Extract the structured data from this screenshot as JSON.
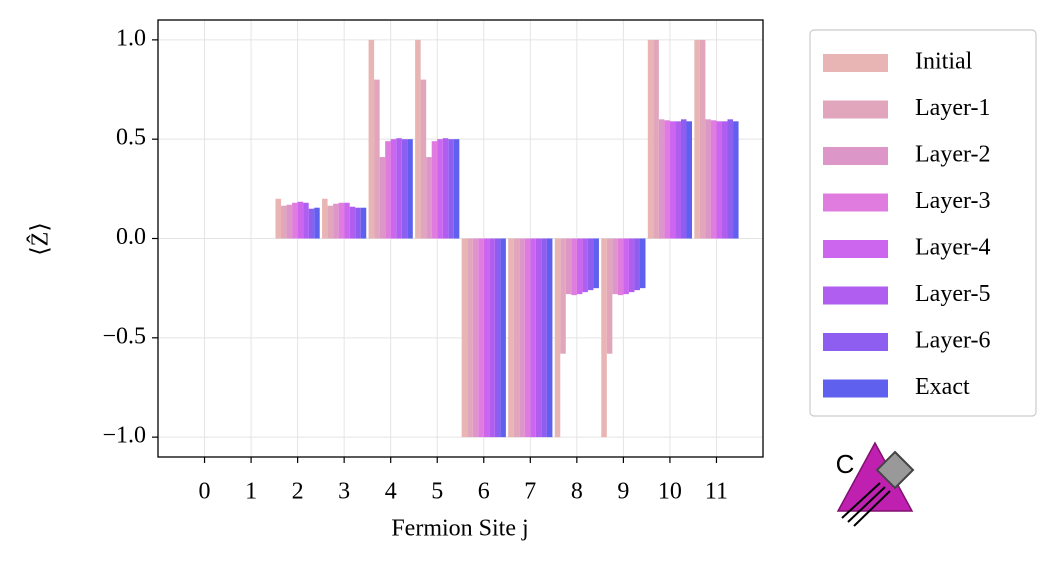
{
  "chart_data": {
    "type": "bar",
    "xlabel": "Fermion Site j",
    "ylabel": "⟨Ẑ⟩",
    "x": [
      0,
      1,
      2,
      3,
      4,
      5,
      6,
      7,
      8,
      9,
      10,
      11
    ],
    "xlim": [
      -1,
      12
    ],
    "xticks": [
      0,
      1,
      2,
      3,
      4,
      5,
      6,
      7,
      8,
      9,
      10,
      11
    ],
    "ylim": [
      -1.1,
      1.1
    ],
    "yticks": [
      {
        "value": -1.0,
        "label": "−1.0"
      },
      {
        "value": -0.5,
        "label": "−0.5"
      },
      {
        "value": 0.0,
        "label": "0.0"
      },
      0.5,
      {
        "value": 1.0,
        "label": "1.0"
      }
    ],
    "grid": true,
    "legend": "outside right",
    "series": [
      {
        "name": "Initial",
        "color": "#e8b4b4",
        "values": [
          0,
          0,
          0.2,
          0.2,
          1.0,
          1.0,
          -1.0,
          -1.0,
          -1.0,
          -1.0,
          1.0,
          1.0
        ]
      },
      {
        "name": "Layer-1",
        "color": "#e2a6bc",
        "values": [
          0,
          0,
          0.165,
          0.165,
          0.8,
          0.8,
          -1.0,
          -1.0,
          -0.58,
          -0.58,
          1.0,
          1.0
        ]
      },
      {
        "name": "Layer-2",
        "color": "#dc96c8",
        "values": [
          0,
          0,
          0.17,
          0.175,
          0.41,
          0.41,
          -1.0,
          -1.0,
          -0.28,
          -0.28,
          0.6,
          0.6
        ]
      },
      {
        "name": "Layer-3",
        "color": "#e07ce0",
        "values": [
          0,
          0,
          0.18,
          0.18,
          0.49,
          0.49,
          -1.0,
          -1.0,
          -0.285,
          -0.285,
          0.595,
          0.595
        ]
      },
      {
        "name": "Layer-4",
        "color": "#cc66ee",
        "values": [
          0,
          0,
          0.185,
          0.18,
          0.5,
          0.5,
          -1.0,
          -1.0,
          -0.28,
          -0.28,
          0.59,
          0.59
        ]
      },
      {
        "name": "Layer-5",
        "color": "#b05ef0",
        "values": [
          0,
          0,
          0.18,
          0.16,
          0.505,
          0.505,
          -1.0,
          -1.0,
          -0.27,
          -0.27,
          0.59,
          0.59
        ]
      },
      {
        "name": "Layer-6",
        "color": "#8e5ef0",
        "values": [
          0,
          0,
          0.15,
          0.155,
          0.5,
          0.5,
          -1.0,
          -1.0,
          -0.26,
          -0.26,
          0.6,
          0.6
        ]
      },
      {
        "name": "Exact",
        "color": "#6060ee",
        "values": [
          0,
          0,
          0.155,
          0.155,
          0.5,
          0.5,
          -1.0,
          -1.0,
          -0.25,
          -0.25,
          0.59,
          0.59
        ]
      }
    ]
  },
  "logo": {
    "text": "C"
  }
}
